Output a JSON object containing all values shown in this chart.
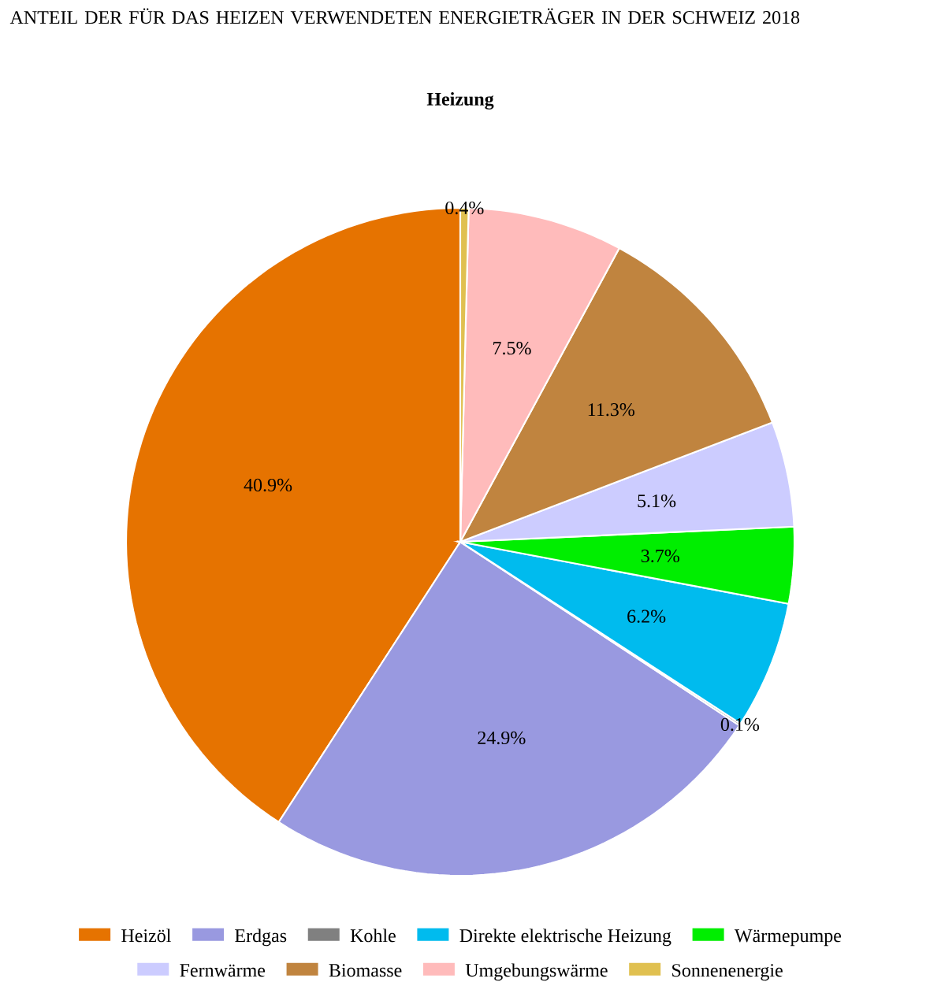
{
  "chart_data": {
    "type": "pie",
    "title": "ANTEIL DER FÜR DAS HEIZEN VERWENDETEN ENERGIETRÄGER IN DER SCHWEIZ 2018",
    "subtitle": "Heizung",
    "categories": [
      "Heizöl",
      "Erdgas",
      "Kohle",
      "Direkte elektrische Heizung",
      "Wärmepumpe",
      "Fernwärme",
      "Biomasse",
      "Umgebungswärme",
      "Sonnenenergie"
    ],
    "values": [
      40.9,
      24.9,
      0.1,
      6.2,
      3.7,
      5.1,
      11.3,
      7.5,
      0.4
    ],
    "colors": [
      "#e67300",
      "#9999e0",
      "#808080",
      "#00bbee",
      "#00ee00",
      "#ccccff",
      "#c0843f",
      "#ffbbbb",
      "#e0c050"
    ],
    "value_labels": [
      "40.9%",
      "24.9%",
      "0.1%",
      "6.2%",
      "3.7%",
      "5.1%",
      "11.3%",
      "7.5%",
      "0.4%"
    ],
    "legend": "bottom"
  }
}
